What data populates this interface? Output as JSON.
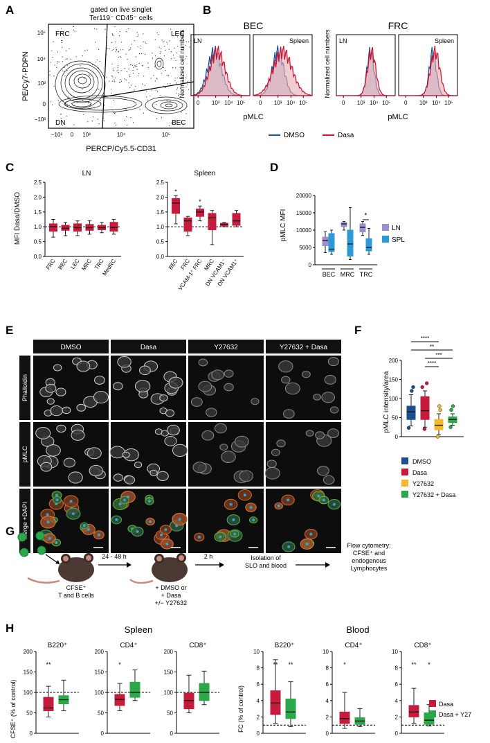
{
  "figure": {
    "panel_labels": [
      "A",
      "B",
      "C",
      "D",
      "E",
      "F",
      "G",
      "H"
    ],
    "colors": {
      "dmso_blue": "#1f4e8c",
      "dasa_red": "#c8102e",
      "red_box": "#c51b3c",
      "ln_purple": "#9b8fd0",
      "spl_blue": "#2c9ad6",
      "dmso_box": "#1a4f8b",
      "y27_yellow": "#f5b82e",
      "combo_green": "#2aa84a"
    }
  },
  "panelA": {
    "gate_line1": "gated on live singlet",
    "gate_line2": "Ter119⁻ CD45⁻ cells",
    "ylabel": "PE/Cy7-PDPN",
    "xlabel": "PERCP/Cy5.5-CD31",
    "quadrants": [
      "FRC",
      "LEC",
      "DN",
      "BEC"
    ],
    "yticks": [
      "10⁵",
      "10⁴",
      "10³",
      "0",
      "−10³"
    ],
    "xticks": [
      "−10³",
      "0",
      "10³",
      "10⁴",
      "10⁵"
    ]
  },
  "panelB": {
    "group1_title": "BEC",
    "group2_title": "FRC",
    "ylabel": "Normalized cell numbers",
    "xlabel": "pMLC",
    "panel_names": [
      "LN",
      "Spleen",
      "LN",
      "Spleen"
    ],
    "xticks": [
      "0",
      "10³",
      "10⁴",
      "10⁵"
    ],
    "legend": [
      {
        "label": "DMSO",
        "color": "#1f4e8c"
      },
      {
        "label": "Dasa",
        "color": "#c8102e"
      }
    ]
  },
  "panelC": {
    "titles": [
      "LN",
      "Spleen"
    ],
    "ylabel": "MFI Dasa/DMSO",
    "yticks": [
      "2.5",
      "2.0",
      "1.5",
      "1.0",
      "0.5",
      "0.0"
    ],
    "ln_categories": [
      "FRC",
      "BEC",
      "LEC",
      "MRC",
      "TRC",
      "MedRC"
    ],
    "spleen_categories": [
      "BEC",
      "FRC",
      "VCAM-1⁺ FRC",
      "MRC",
      "DN VCAM1⁻",
      "DN VCAM1⁺"
    ],
    "spleen_stars": [
      "*",
      "",
      "*",
      "",
      "",
      ""
    ]
  },
  "panelD": {
    "ylabel": "pMLC MFI",
    "yticks": [
      "20000",
      "15000",
      "10000",
      "5000",
      "0"
    ],
    "categories": [
      "BEC",
      "MRC",
      "TRC"
    ],
    "star": "*",
    "legend": [
      {
        "label": "LN",
        "color": "#9b8fd0"
      },
      {
        "label": "SPL",
        "color": "#2c9ad6"
      }
    ]
  },
  "panelE": {
    "columns": [
      "DMSO",
      "Dasa",
      "Y27632",
      "Y27632 + Dasa"
    ],
    "rows": [
      "Phalloidin",
      "pMLC",
      "Merge +DAPI"
    ]
  },
  "panelF": {
    "ylabel": "pMLC intensity/area",
    "yticks": [
      "200",
      "150",
      "100",
      "50",
      "0"
    ],
    "sig": [
      "****",
      "**",
      "***",
      "****"
    ],
    "legend": [
      {
        "label": "DMSO",
        "color": "#1a4f8b"
      },
      {
        "label": "Dasa",
        "color": "#c51b3c"
      },
      {
        "label": "Y27632",
        "color": "#f5b82e"
      },
      {
        "label": "Y27632 + Dasa",
        "color": "#2aa84a"
      }
    ]
  },
  "panelG": {
    "mouse1_l1": "CFSE⁺",
    "mouse1_l2": "T and B cells",
    "step1": "24 - 48 h",
    "mouse2_l1": "+ DMSO or",
    "mouse2_l2": "+ Dasa",
    "mouse2_l3": "+/− Y27632",
    "step2": "2 h",
    "iso_l1": "Isolation of",
    "iso_l2": "SLO and blood",
    "flow_l1": "Flow cytometry:",
    "flow_l2": "CFSE⁺ and",
    "flow_l3": "endogenous",
    "flow_l4": "Lymphocytes"
  },
  "panelH": {
    "spleen_title": "Spleen",
    "blood_title": "Blood",
    "spleen_ylabel": "CFSE⁺ (% of control)",
    "blood_ylabel": "FC (% of control)",
    "spleen_yticks": [
      "200",
      "150",
      "100",
      "50",
      "0"
    ],
    "blood_yticks": [
      "10",
      "8",
      "6",
      "4",
      "2",
      "0"
    ],
    "subtitles": [
      "B220⁺",
      "CD4⁺",
      "CD8⁺",
      "B220⁺",
      "CD4⁺",
      "CD8⁺"
    ],
    "stars": [
      [
        "**",
        ""
      ],
      [
        "*",
        ""
      ],
      [
        "",
        ""
      ],
      [
        "**",
        "**"
      ],
      [
        "*",
        ""
      ],
      [
        "**",
        "*"
      ]
    ],
    "legend": [
      {
        "label": "Dasa",
        "color": "#c51b3c"
      },
      {
        "label": "Dasa + Y27",
        "color": "#2aa84a"
      }
    ]
  }
}
